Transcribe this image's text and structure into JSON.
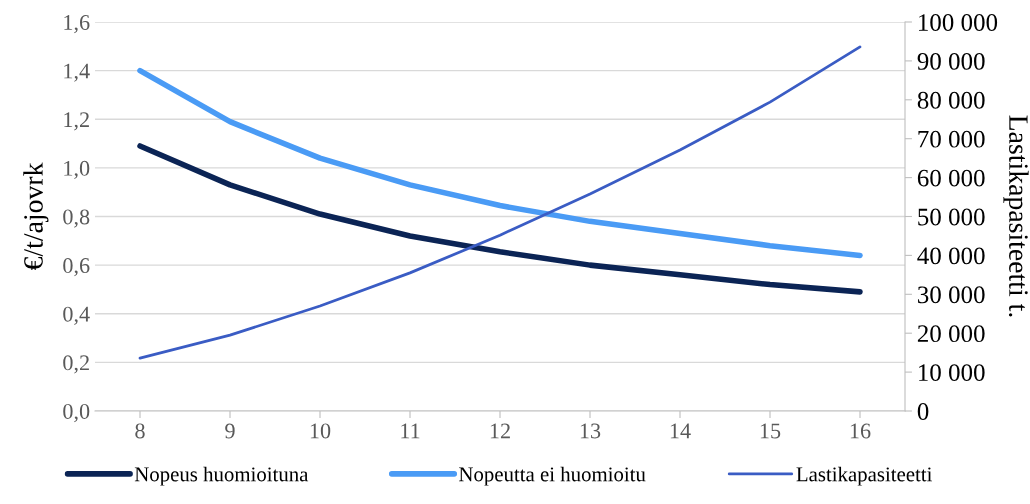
{
  "chart_data": {
    "type": "line",
    "ylabel": "€/t/ajovrk",
    "y2label": "Lastikapasiteetti t.",
    "categories": [
      "8",
      "9",
      "10",
      "11",
      "12",
      "13",
      "14",
      "15",
      "16"
    ],
    "series": [
      {
        "name": "Nopeus huomioituna",
        "color": "#0b2455",
        "values": [
          1.09,
          0.93,
          0.81,
          0.72,
          0.655,
          0.6,
          0.56,
          0.52,
          0.49
        ]
      },
      {
        "name": "Nopeutta ei huomioitu",
        "color": "#4a9bf5",
        "values": [
          1.4,
          1.19,
          1.04,
          0.93,
          0.845,
          0.78,
          0.73,
          0.68,
          0.64
        ]
      },
      {
        "name": "Lastikapasiteetti",
        "color": "#3a5cc4",
        "axis": "y2",
        "values": [
          13600,
          19500,
          27000,
          35500,
          45200,
          55800,
          67100,
          79400,
          93600
        ]
      }
    ],
    "ylim": [
      0,
      1.6
    ],
    "yticks": [
      {
        "value": 0,
        "label": "0,0"
      },
      {
        "value": 0.2,
        "label": "0,2"
      },
      {
        "value": 0.4,
        "label": "0,4"
      },
      {
        "value": 0.6,
        "label": "0,6"
      },
      {
        "value": 0.8,
        "label": "0,8"
      },
      {
        "value": 1.0,
        "label": "1,0"
      },
      {
        "value": 1.2,
        "label": "1,2"
      },
      {
        "value": 1.4,
        "label": "1,4"
      },
      {
        "value": 1.6,
        "label": "1,6"
      }
    ],
    "y2lim": [
      0,
      100000
    ],
    "y2ticks": [
      0,
      {
        "value": 10000,
        "label": "10 000"
      },
      {
        "value": 20000,
        "label": "20 000"
      },
      {
        "value": 30000,
        "label": "30 000"
      },
      {
        "value": 40000,
        "label": "40 000"
      },
      {
        "value": 50000,
        "label": "50 000"
      },
      {
        "value": 60000,
        "label": "60 000"
      },
      {
        "value": 70000,
        "label": "70 000"
      },
      {
        "value": 80000,
        "label": "80 000"
      },
      {
        "value": 90000,
        "label": "90 000"
      },
      {
        "value": 100000,
        "label": "100 000"
      }
    ],
    "grid": "y",
    "legend": "bottom",
    "marker": "none",
    "line_style": "solid"
  }
}
